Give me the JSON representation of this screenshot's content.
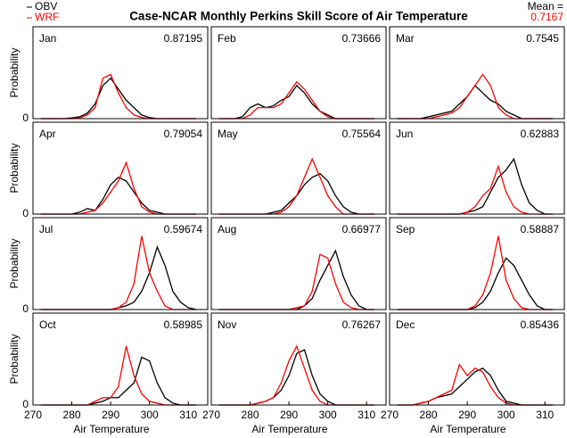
{
  "figure": {
    "title": "Case-NCAR Monthly Perkins Skill Score of Air Temperature",
    "mean_label": "Mean =",
    "mean_value": 0.7167
  },
  "chart_data": [
    {
      "type": "line",
      "title": "Jan",
      "score": 0.87195,
      "ylabel": "Probability",
      "xlim": [
        270,
        315
      ],
      "ylim": [
        0,
        0.25
      ],
      "yticks": [
        0
      ],
      "x": [
        272,
        274,
        276,
        278,
        280,
        282,
        284,
        286,
        288,
        290,
        292,
        294,
        296,
        298,
        300,
        302,
        304,
        306,
        308,
        310,
        312
      ],
      "series": [
        {
          "name": "OBV",
          "color": "#000000",
          "values": [
            0,
            0,
            0,
            0,
            0.002,
            0.005,
            0.015,
            0.04,
            0.09,
            0.11,
            0.08,
            0.05,
            0.03,
            0.01,
            0.003,
            0,
            0,
            0,
            0,
            0,
            0
          ]
        },
        {
          "name": "WRF",
          "color": "#ff0000",
          "values": [
            0,
            0,
            0,
            0,
            0,
            0.002,
            0.01,
            0.03,
            0.11,
            0.12,
            0.07,
            0.03,
            0.01,
            0.003,
            0,
            0,
            0,
            0,
            0,
            0,
            0
          ]
        }
      ]
    },
    {
      "type": "line",
      "title": "Feb",
      "score": 0.73666,
      "xlim": [
        270,
        315
      ],
      "ylim": [
        0,
        0.25
      ],
      "x": [
        272,
        274,
        276,
        278,
        280,
        282,
        284,
        286,
        288,
        290,
        292,
        294,
        296,
        298,
        300,
        302,
        304,
        306,
        308,
        310,
        312
      ],
      "series": [
        {
          "color": "#000000",
          "values": [
            0,
            0,
            0,
            0.005,
            0.03,
            0.04,
            0.03,
            0.035,
            0.05,
            0.06,
            0.09,
            0.07,
            0.04,
            0.02,
            0.01,
            0,
            0,
            0,
            0,
            0,
            0
          ]
        },
        {
          "color": "#ff0000",
          "values": [
            0,
            0,
            0,
            0,
            0.01,
            0.03,
            0.03,
            0.03,
            0.04,
            0.07,
            0.1,
            0.08,
            0.05,
            0.02,
            0.005,
            0,
            0,
            0,
            0,
            0,
            0
          ]
        }
      ]
    },
    {
      "type": "line",
      "title": "Mar",
      "score": 0.7545,
      "xlim": [
        270,
        315
      ],
      "ylim": [
        0,
        0.25
      ],
      "x": [
        272,
        274,
        276,
        278,
        280,
        282,
        284,
        286,
        288,
        290,
        292,
        294,
        296,
        298,
        300,
        302,
        304,
        306,
        308,
        310,
        312
      ],
      "series": [
        {
          "color": "#000000",
          "values": [
            0,
            0,
            0,
            0,
            0.005,
            0.01,
            0.015,
            0.02,
            0.04,
            0.06,
            0.09,
            0.07,
            0.05,
            0.04,
            0.02,
            0.01,
            0,
            0,
            0,
            0,
            0
          ]
        },
        {
          "color": "#ff0000",
          "values": [
            0,
            0,
            0,
            0,
            0,
            0.005,
            0.01,
            0.015,
            0.03,
            0.06,
            0.09,
            0.12,
            0.09,
            0.03,
            0.01,
            0,
            0,
            0,
            0,
            0,
            0
          ]
        }
      ]
    },
    {
      "type": "line",
      "title": "Apr",
      "score": 0.79054,
      "ylabel": "Probability",
      "xlim": [
        270,
        315
      ],
      "ylim": [
        0,
        0.25
      ],
      "yticks": [
        0
      ],
      "x": [
        272,
        274,
        276,
        278,
        280,
        282,
        284,
        286,
        288,
        290,
        292,
        294,
        296,
        298,
        300,
        302,
        304,
        306,
        308,
        310,
        312
      ],
      "series": [
        {
          "color": "#000000",
          "values": [
            0,
            0,
            0,
            0,
            0,
            0.005,
            0.015,
            0.01,
            0.04,
            0.08,
            0.1,
            0.09,
            0.06,
            0.03,
            0.01,
            0.005,
            0,
            0,
            0,
            0,
            0
          ]
        },
        {
          "color": "#ff0000",
          "values": [
            0,
            0,
            0,
            0,
            0,
            0,
            0.005,
            0.01,
            0.03,
            0.06,
            0.09,
            0.14,
            0.07,
            0.02,
            0.005,
            0,
            0,
            0,
            0,
            0,
            0
          ]
        }
      ]
    },
    {
      "type": "line",
      "title": "May",
      "score": 0.75564,
      "xlim": [
        270,
        315
      ],
      "ylim": [
        0,
        0.25
      ],
      "x": [
        272,
        274,
        276,
        278,
        280,
        282,
        284,
        286,
        288,
        290,
        292,
        294,
        296,
        298,
        300,
        302,
        304,
        306,
        308,
        310,
        312
      ],
      "series": [
        {
          "color": "#000000",
          "values": [
            0,
            0,
            0,
            0,
            0,
            0,
            0,
            0.005,
            0.01,
            0.03,
            0.05,
            0.08,
            0.1,
            0.11,
            0.09,
            0.05,
            0.02,
            0.005,
            0,
            0,
            0
          ]
        },
        {
          "color": "#ff0000",
          "values": [
            0,
            0,
            0,
            0,
            0,
            0,
            0,
            0,
            0.005,
            0.02,
            0.05,
            0.1,
            0.15,
            0.1,
            0.05,
            0.02,
            0,
            0,
            0,
            0,
            0
          ]
        }
      ]
    },
    {
      "type": "line",
      "title": "Jun",
      "score": 0.62883,
      "xlim": [
        270,
        315
      ],
      "ylim": [
        0,
        0.25
      ],
      "x": [
        272,
        274,
        276,
        278,
        280,
        282,
        284,
        286,
        288,
        290,
        292,
        294,
        296,
        298,
        300,
        302,
        304,
        306,
        308,
        310,
        312
      ],
      "series": [
        {
          "color": "#000000",
          "values": [
            0,
            0,
            0,
            0,
            0,
            0,
            0,
            0,
            0,
            0.005,
            0.01,
            0.02,
            0.06,
            0.1,
            0.12,
            0.15,
            0.08,
            0.03,
            0.01,
            0,
            0
          ]
        },
        {
          "color": "#ff0000",
          "values": [
            0,
            0,
            0,
            0,
            0,
            0,
            0,
            0,
            0,
            0.005,
            0.02,
            0.05,
            0.07,
            0.13,
            0.06,
            0.02,
            0.005,
            0,
            0,
            0,
            0
          ]
        }
      ]
    },
    {
      "type": "line",
      "title": "Jul",
      "score": 0.59674,
      "ylabel": "Probability",
      "xlim": [
        270,
        315
      ],
      "ylim": [
        0,
        0.25
      ],
      "yticks": [
        0
      ],
      "x": [
        272,
        274,
        276,
        278,
        280,
        282,
        284,
        286,
        288,
        290,
        292,
        294,
        296,
        298,
        300,
        302,
        304,
        306,
        308,
        310,
        312
      ],
      "series": [
        {
          "color": "#000000",
          "values": [
            0,
            0,
            0,
            0,
            0,
            0,
            0,
            0,
            0,
            0,
            0.005,
            0.01,
            0.02,
            0.05,
            0.1,
            0.17,
            0.12,
            0.05,
            0.02,
            0.005,
            0
          ]
        },
        {
          "color": "#ff0000",
          "values": [
            0,
            0,
            0,
            0,
            0,
            0,
            0,
            0,
            0,
            0,
            0.005,
            0.02,
            0.07,
            0.2,
            0.1,
            0.05,
            0.01,
            0,
            0,
            0,
            0
          ]
        }
      ]
    },
    {
      "type": "line",
      "title": "Aug",
      "score": 0.66977,
      "xlim": [
        270,
        315
      ],
      "ylim": [
        0,
        0.25
      ],
      "x": [
        272,
        274,
        276,
        278,
        280,
        282,
        284,
        286,
        288,
        290,
        292,
        294,
        296,
        298,
        300,
        302,
        304,
        306,
        308,
        310,
        312
      ],
      "series": [
        {
          "color": "#000000",
          "values": [
            0,
            0,
            0,
            0,
            0,
            0,
            0,
            0,
            0,
            0,
            0,
            0.01,
            0.03,
            0.08,
            0.12,
            0.16,
            0.09,
            0.04,
            0.01,
            0,
            0
          ]
        },
        {
          "color": "#ff0000",
          "values": [
            0,
            0,
            0,
            0,
            0,
            0,
            0,
            0,
            0,
            0,
            0.005,
            0.01,
            0.05,
            0.15,
            0.14,
            0.07,
            0.02,
            0.005,
            0,
            0,
            0
          ]
        }
      ]
    },
    {
      "type": "line",
      "title": "Sep",
      "score": 0.58887,
      "xlim": [
        270,
        315
      ],
      "ylim": [
        0,
        0.25
      ],
      "x": [
        272,
        274,
        276,
        278,
        280,
        282,
        284,
        286,
        288,
        290,
        292,
        294,
        296,
        298,
        300,
        302,
        304,
        306,
        308,
        310,
        312
      ],
      "series": [
        {
          "color": "#000000",
          "values": [
            0,
            0,
            0,
            0,
            0,
            0,
            0,
            0,
            0,
            0,
            0.005,
            0.02,
            0.05,
            0.1,
            0.14,
            0.12,
            0.08,
            0.04,
            0.01,
            0,
            0
          ]
        },
        {
          "color": "#ff0000",
          "values": [
            0,
            0,
            0,
            0,
            0,
            0,
            0,
            0,
            0,
            0,
            0.01,
            0.04,
            0.1,
            0.2,
            0.08,
            0.03,
            0.005,
            0,
            0,
            0,
            0
          ]
        }
      ]
    },
    {
      "type": "line",
      "title": "Oct",
      "score": 0.58985,
      "ylabel": "Probability",
      "xlabel": "Air Temperature",
      "xlim": [
        270,
        315
      ],
      "ylim": [
        0,
        0.25
      ],
      "yticks": [
        0
      ],
      "xticks": [
        270,
        280,
        290,
        300,
        310
      ],
      "x": [
        272,
        274,
        276,
        278,
        280,
        282,
        284,
        286,
        288,
        290,
        292,
        294,
        296,
        298,
        300,
        302,
        304,
        306,
        308,
        310,
        312
      ],
      "series": [
        {
          "color": "#000000",
          "values": [
            0,
            0,
            0,
            0,
            0,
            0,
            0,
            0.005,
            0.01,
            0.02,
            0.02,
            0.04,
            0.06,
            0.13,
            0.12,
            0.06,
            0.02,
            0.005,
            0,
            0,
            0
          ]
        },
        {
          "color": "#ff0000",
          "values": [
            0,
            0,
            0,
            0,
            0,
            0,
            0,
            0.01,
            0.02,
            0.02,
            0.05,
            0.16,
            0.08,
            0.03,
            0.01,
            0.005,
            0,
            0,
            0,
            0,
            0
          ]
        }
      ]
    },
    {
      "type": "line",
      "title": "Nov",
      "score": 0.76267,
      "xlabel": "Air Temperature",
      "xlim": [
        270,
        315
      ],
      "ylim": [
        0,
        0.25
      ],
      "xticks": [
        270,
        280,
        290,
        300,
        310
      ],
      "x": [
        272,
        274,
        276,
        278,
        280,
        282,
        284,
        286,
        288,
        290,
        292,
        294,
        296,
        298,
        300,
        302,
        304,
        306,
        308,
        310,
        312
      ],
      "series": [
        {
          "color": "#000000",
          "values": [
            0,
            0,
            0,
            0,
            0,
            0.005,
            0.01,
            0.02,
            0.04,
            0.08,
            0.14,
            0.15,
            0.08,
            0.03,
            0.01,
            0,
            0,
            0,
            0,
            0,
            0
          ]
        },
        {
          "color": "#ff0000",
          "values": [
            0,
            0,
            0,
            0,
            0,
            0.005,
            0.01,
            0.02,
            0.06,
            0.12,
            0.16,
            0.1,
            0.04,
            0.01,
            0,
            0,
            0,
            0,
            0,
            0,
            0
          ]
        }
      ]
    },
    {
      "type": "line",
      "title": "Dec",
      "score": 0.85436,
      "xlabel": "Air Temperature",
      "xlim": [
        270,
        315
      ],
      "ylim": [
        0,
        0.25
      ],
      "xticks": [
        270,
        280,
        290,
        300,
        310
      ],
      "x": [
        272,
        274,
        276,
        278,
        280,
        282,
        284,
        286,
        288,
        290,
        292,
        294,
        296,
        298,
        300,
        302,
        304,
        306,
        308,
        310,
        312
      ],
      "series": [
        {
          "color": "#000000",
          "values": [
            0,
            0,
            0,
            0.005,
            0.01,
            0.02,
            0.025,
            0.03,
            0.05,
            0.07,
            0.09,
            0.1,
            0.08,
            0.04,
            0.01,
            0.005,
            0,
            0,
            0,
            0,
            0
          ]
        },
        {
          "color": "#ff0000",
          "values": [
            0,
            0,
            0,
            0.005,
            0.01,
            0.02,
            0.03,
            0.04,
            0.11,
            0.08,
            0.1,
            0.09,
            0.05,
            0.02,
            0.005,
            0,
            0,
            0,
            0,
            0,
            0
          ]
        }
      ]
    }
  ]
}
